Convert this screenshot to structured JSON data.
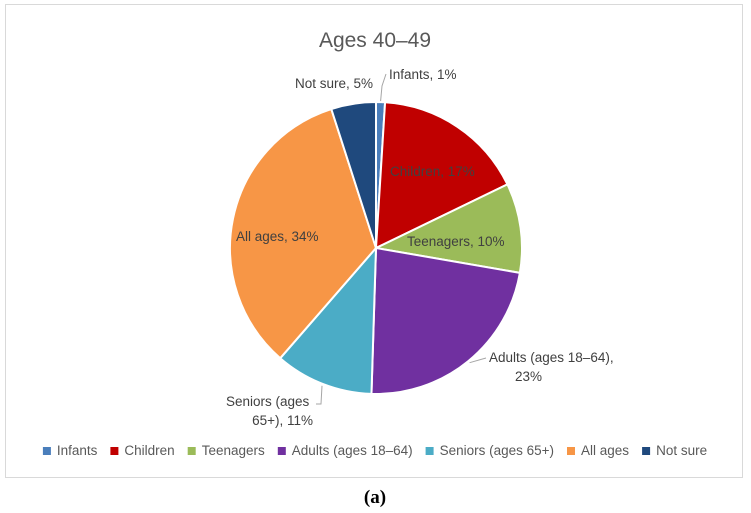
{
  "caption": "(a)",
  "chart_data": {
    "type": "pie",
    "title": "Ages 40–49",
    "legend_position": "bottom",
    "slices": [
      {
        "label": "Infants",
        "value": 1,
        "color": "#4a7ebb",
        "data_label": "Infants, 1%"
      },
      {
        "label": "Children",
        "value": 17,
        "color": "#c00000",
        "data_label": "Children, 17%"
      },
      {
        "label": "Teenagers",
        "value": 10,
        "color": "#9bbb59",
        "data_label": "Teenagers, 10%"
      },
      {
        "label": "Adults (ages 18–64)",
        "value": 23,
        "color": "#7030a0",
        "data_label_lines": [
          "Adults (ages 18–64),",
          "23%"
        ]
      },
      {
        "label": "Seniors (ages 65+)",
        "value": 11,
        "color": "#4bacc6",
        "data_label_lines": [
          "Seniors (ages",
          "65+), 11%"
        ]
      },
      {
        "label": "All ages",
        "value": 34,
        "color": "#f79646",
        "data_label": "All ages, 34%"
      },
      {
        "label": "Not sure",
        "value": 5,
        "color": "#1f497d",
        "data_label": "Not sure, 5%"
      }
    ]
  }
}
